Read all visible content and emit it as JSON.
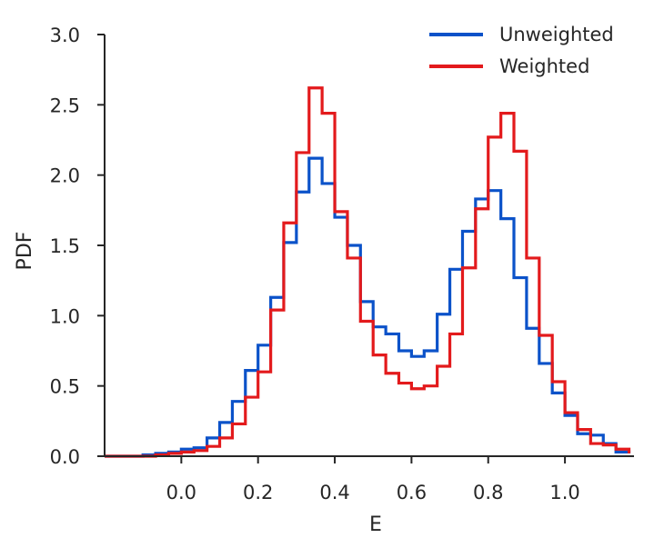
{
  "chart_data": {
    "type": "line",
    "step": true,
    "xlabel": "E",
    "ylabel": "PDF",
    "xlim": [
      -0.2,
      1.18
    ],
    "ylim": [
      0.0,
      3.0
    ],
    "x_ticks": [
      0.0,
      0.2,
      0.4,
      0.6,
      0.8,
      1.0
    ],
    "x_tick_labels": [
      "0.0",
      "0.2",
      "0.4",
      "0.6",
      "0.8",
      "1.0"
    ],
    "y_ticks": [
      0.0,
      0.5,
      1.0,
      1.5,
      2.0,
      2.5,
      3.0
    ],
    "y_tick_labels": [
      "0.0",
      "0.5",
      "1.0",
      "1.5",
      "2.0",
      "2.5",
      "3.0"
    ],
    "grid": false,
    "legend_position": "top-right",
    "bin_edges": [
      -0.2,
      -0.167,
      -0.133,
      -0.1,
      -0.067,
      -0.033,
      0.0,
      0.033,
      0.067,
      0.1,
      0.133,
      0.167,
      0.2,
      0.233,
      0.267,
      0.3,
      0.333,
      0.367,
      0.4,
      0.433,
      0.467,
      0.5,
      0.533,
      0.567,
      0.6,
      0.633,
      0.667,
      0.7,
      0.733,
      0.767,
      0.8,
      0.833,
      0.867,
      0.9,
      0.933,
      0.967,
      1.0,
      1.033,
      1.067,
      1.1,
      1.133,
      1.167
    ],
    "series": [
      {
        "name": "Unweighted",
        "color": "#0b52c9",
        "values": [
          0.0,
          0.0,
          0.0,
          0.01,
          0.02,
          0.03,
          0.05,
          0.06,
          0.13,
          0.24,
          0.39,
          0.61,
          0.79,
          1.13,
          1.52,
          1.88,
          2.12,
          1.94,
          1.7,
          1.5,
          1.1,
          0.92,
          0.87,
          0.75,
          0.71,
          0.75,
          1.01,
          1.33,
          1.6,
          1.83,
          1.89,
          1.69,
          1.27,
          0.91,
          0.66,
          0.45,
          0.29,
          0.16,
          0.15,
          0.09,
          0.03,
          0.02
        ]
      },
      {
        "name": "Weighted",
        "color": "#e31a1c",
        "values": [
          0.0,
          0.0,
          0.0,
          0.0,
          0.01,
          0.02,
          0.03,
          0.04,
          0.07,
          0.13,
          0.23,
          0.42,
          0.6,
          1.04,
          1.66,
          2.16,
          2.62,
          2.44,
          1.74,
          1.41,
          0.96,
          0.72,
          0.59,
          0.52,
          0.48,
          0.5,
          0.64,
          0.87,
          1.34,
          1.76,
          2.27,
          2.44,
          2.17,
          1.41,
          0.86,
          0.53,
          0.31,
          0.19,
          0.09,
          0.08,
          0.05,
          0.02
        ]
      }
    ]
  }
}
